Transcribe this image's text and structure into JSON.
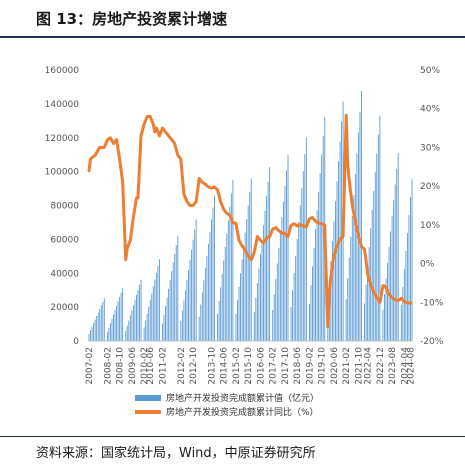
{
  "header": {
    "title": "图 13：房地产投资累计增速"
  },
  "footer": {
    "source": "资料来源：国家统计局，Wind，中原证券研究所"
  },
  "colors": {
    "bars": "#5b9bd5",
    "line": "#ed7d31",
    "rule": "#1f2f54"
  },
  "chart_data": {
    "type": "bar+line",
    "title": "",
    "xlabel": "",
    "ylabel_left": "",
    "ylabel_right": "",
    "ylim_left": [
      0,
      160000
    ],
    "ylim_right": [
      -20,
      50
    ],
    "yticks_left": [
      "0",
      "20000",
      "40000",
      "60000",
      "80000",
      "100000",
      "120000",
      "140000",
      "160000"
    ],
    "yticks_right": [
      "-20%",
      "-10%",
      "0%",
      "10%",
      "20%",
      "30%",
      "40%",
      "50%"
    ],
    "xticks": [
      "2007-02",
      "2008-02",
      "2008-10",
      "2009-06",
      "2010-02",
      "2010-06",
      "2011-02",
      "2012-02",
      "2012-10",
      "2013-10",
      "2014-06",
      "2015-02",
      "2015-10",
      "2016-06",
      "2017-02",
      "2017-10",
      "2018-06",
      "2019-02",
      "2019-10",
      "2020-06",
      "2021-02",
      "2021-10",
      "2022-04",
      "2022-12",
      "2023-08",
      "2024-04",
      "2024-08"
    ],
    "legend_position": "bottom",
    "grid": false,
    "series": [
      {
        "name": "房地产开发投资完成额累计值（亿元）",
        "type": "bar",
        "axis": "left",
        "annual_peak": {
          "2007": 25280,
          "2008": 31200,
          "2009": 36230,
          "2010": 48260,
          "2011": 61800,
          "2012": 71800,
          "2013": 86010,
          "2014": 95040,
          "2015": 95980,
          "2016": 102580,
          "2017": 109800,
          "2018": 120260,
          "2019": 132190,
          "2020": 141440,
          "2021": 147600,
          "2022": 132900,
          "2023": 110910,
          "2024": 85000
        }
      },
      {
        "name": "房地产开发投资完成额累计同比（%）",
        "type": "line",
        "axis": "right",
        "points": [
          [
            "2007-02",
            24
          ],
          [
            "2007-03",
            27
          ],
          [
            "2007-06",
            28
          ],
          [
            "2007-09",
            30
          ],
          [
            "2007-12",
            30
          ],
          [
            "2008-02",
            32
          ],
          [
            "2008-04",
            32.5
          ],
          [
            "2008-06",
            31
          ],
          [
            "2008-08",
            32
          ],
          [
            "2008-10",
            27
          ],
          [
            "2008-12",
            21
          ],
          [
            "2009-02",
            1
          ],
          [
            "2009-03",
            4
          ],
          [
            "2009-05",
            6
          ],
          [
            "2009-07",
            12
          ],
          [
            "2009-09",
            17
          ],
          [
            "2009-10",
            17
          ],
          [
            "2009-12",
            33
          ],
          [
            "2010-02",
            36
          ],
          [
            "2010-04",
            38
          ],
          [
            "2010-06",
            38
          ],
          [
            "2010-08",
            36
          ],
          [
            "2010-09",
            34
          ],
          [
            "2010-10",
            35
          ],
          [
            "2010-12",
            33
          ],
          [
            "2011-02",
            35
          ],
          [
            "2011-04",
            34
          ],
          [
            "2011-06",
            33
          ],
          [
            "2011-08",
            32
          ],
          [
            "2011-10",
            31
          ],
          [
            "2011-12",
            28
          ],
          [
            "2012-02",
            27
          ],
          [
            "2012-04",
            18
          ],
          [
            "2012-06",
            16
          ],
          [
            "2012-08",
            15
          ],
          [
            "2012-10",
            15
          ],
          [
            "2012-12",
            16
          ],
          [
            "2013-02",
            22
          ],
          [
            "2013-04",
            21
          ],
          [
            "2013-06",
            20.5
          ],
          [
            "2013-08",
            19.8
          ],
          [
            "2013-10",
            19.5
          ],
          [
            "2013-12",
            19.8
          ],
          [
            "2014-02",
            19
          ],
          [
            "2014-04",
            16
          ],
          [
            "2014-06",
            14
          ],
          [
            "2014-08",
            13
          ],
          [
            "2014-10",
            12.5
          ],
          [
            "2014-12",
            10.5
          ],
          [
            "2015-02",
            10.4
          ],
          [
            "2015-04",
            6
          ],
          [
            "2015-06",
            4.6
          ],
          [
            "2015-08",
            3.5
          ],
          [
            "2015-10",
            2
          ],
          [
            "2015-12",
            1
          ],
          [
            "2016-02",
            3
          ],
          [
            "2016-04",
            7
          ],
          [
            "2016-06",
            6
          ],
          [
            "2016-08",
            5.4
          ],
          [
            "2016-10",
            6.6
          ],
          [
            "2016-12",
            6.9
          ],
          [
            "2017-02",
            8.9
          ],
          [
            "2017-04",
            9.3
          ],
          [
            "2017-06",
            8.5
          ],
          [
            "2017-08",
            7.9
          ],
          [
            "2017-10",
            7.8
          ],
          [
            "2017-12",
            7
          ],
          [
            "2018-02",
            9.9
          ],
          [
            "2018-04",
            10.3
          ],
          [
            "2018-06",
            9.7
          ],
          [
            "2018-08",
            10.1
          ],
          [
            "2018-10",
            9.7
          ],
          [
            "2018-12",
            9.5
          ],
          [
            "2019-02",
            11.6
          ],
          [
            "2019-04",
            11.9
          ],
          [
            "2019-06",
            10.9
          ],
          [
            "2019-08",
            10.5
          ],
          [
            "2019-10",
            10.3
          ],
          [
            "2019-12",
            9.9
          ],
          [
            "2020-02",
            -16.3
          ],
          [
            "2020-03",
            -7.7
          ],
          [
            "2020-04",
            -3.3
          ],
          [
            "2020-05",
            -0.3
          ],
          [
            "2020-06",
            1.9
          ],
          [
            "2020-08",
            4.6
          ],
          [
            "2020-10",
            6.3
          ],
          [
            "2020-12",
            7
          ],
          [
            "2021-02",
            38.3
          ],
          [
            "2021-03",
            25.6
          ],
          [
            "2021-04",
            21.6
          ],
          [
            "2021-06",
            15
          ],
          [
            "2021-08",
            10.9
          ],
          [
            "2021-10",
            7.2
          ],
          [
            "2021-12",
            4.4
          ],
          [
            "2022-02",
            3.7
          ],
          [
            "2022-03",
            0.7
          ],
          [
            "2022-04",
            -2.7
          ],
          [
            "2022-06",
            -5.4
          ],
          [
            "2022-08",
            -7.4
          ],
          [
            "2022-10",
            -8.8
          ],
          [
            "2022-12",
            -10
          ],
          [
            "2023-02",
            -5.7
          ],
          [
            "2023-03",
            -5.8
          ],
          [
            "2023-04",
            -6.2
          ],
          [
            "2023-06",
            -7.9
          ],
          [
            "2023-08",
            -8.8
          ],
          [
            "2023-10",
            -9.3
          ],
          [
            "2023-12",
            -9.6
          ],
          [
            "2024-02",
            -9
          ],
          [
            "2024-04",
            -9.8
          ],
          [
            "2024-06",
            -10.1
          ],
          [
            "2024-08",
            -10.2
          ]
        ]
      }
    ]
  }
}
